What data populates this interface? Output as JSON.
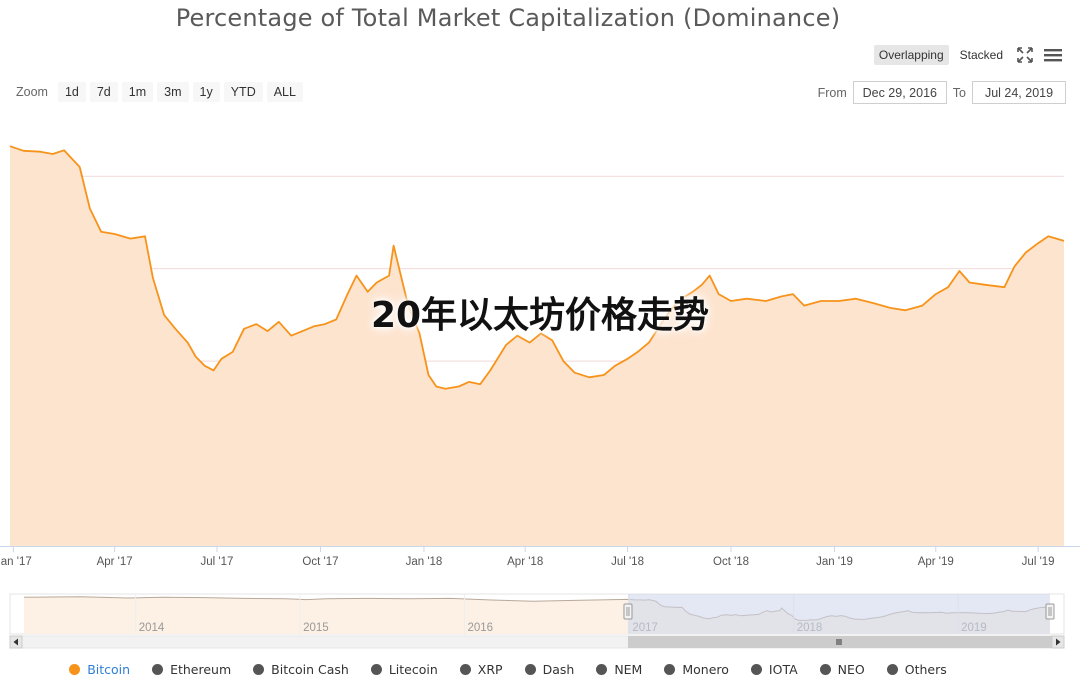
{
  "title": "Percentage of Total Market Capitalization (Dominance)",
  "toolbar": {
    "modes": [
      "Overlapping",
      "Stacked"
    ],
    "active_mode": "Overlapping",
    "fullscreen_icon": "fullscreen-icon",
    "menu_icon": "hamburger-menu-icon"
  },
  "zoom": {
    "label": "Zoom",
    "buttons": [
      "1d",
      "7d",
      "1m",
      "3m",
      "1y",
      "YTD",
      "ALL"
    ]
  },
  "range": {
    "from_label": "From",
    "from_value": "Dec 29, 2016",
    "to_label": "To",
    "to_value": "Jul 24, 2019"
  },
  "watermark": "20年以太坊价格走势",
  "colors": {
    "bitcoin": "#f7931a",
    "area_fill": "#fde4cf",
    "nav_fill": "#fdf1e6",
    "selection": "#ccd6eb",
    "grid": "#f2d9d9"
  },
  "chart_data": {
    "type": "area",
    "series_name": "Bitcoin",
    "x_ticks": [
      "Jan '17",
      "Apr '17",
      "Jul '17",
      "Oct '17",
      "Jan '18",
      "Apr '18",
      "Jul '18",
      "Oct '18",
      "Jan '19",
      "Apr '19",
      "Jul '19"
    ],
    "x_range": [
      "2016-12-29",
      "2019-07-24"
    ],
    "y_range": [
      0,
      90
    ],
    "grid": true,
    "points": [
      [
        "2016-12-29",
        86.5
      ],
      [
        "2017-01-10",
        85.5
      ],
      [
        "2017-01-25",
        85.3
      ],
      [
        "2017-02-05",
        84.8
      ],
      [
        "2017-02-15",
        85.6
      ],
      [
        "2017-03-01",
        82.0
      ],
      [
        "2017-03-10",
        73.0
      ],
      [
        "2017-03-20",
        68.0
      ],
      [
        "2017-04-01",
        67.5
      ],
      [
        "2017-04-15",
        66.5
      ],
      [
        "2017-04-28",
        67.0
      ],
      [
        "2017-05-05",
        58.0
      ],
      [
        "2017-05-15",
        50.0
      ],
      [
        "2017-05-25",
        47.0
      ],
      [
        "2017-06-05",
        44.0
      ],
      [
        "2017-06-12",
        41.0
      ],
      [
        "2017-06-20",
        39.0
      ],
      [
        "2017-06-28",
        38.0
      ],
      [
        "2017-07-05",
        40.5
      ],
      [
        "2017-07-15",
        42.0
      ],
      [
        "2017-07-25",
        47.0
      ],
      [
        "2017-08-05",
        48.0
      ],
      [
        "2017-08-15",
        46.5
      ],
      [
        "2017-08-25",
        48.5
      ],
      [
        "2017-09-05",
        45.5
      ],
      [
        "2017-09-15",
        46.5
      ],
      [
        "2017-09-25",
        47.5
      ],
      [
        "2017-10-05",
        48.0
      ],
      [
        "2017-10-15",
        49.0
      ],
      [
        "2017-10-25",
        54.5
      ],
      [
        "2017-11-02",
        58.5
      ],
      [
        "2017-11-12",
        55.0
      ],
      [
        "2017-11-20",
        57.0
      ],
      [
        "2017-12-01",
        58.5
      ],
      [
        "2017-12-05",
        65.0
      ],
      [
        "2017-12-10",
        60.0
      ],
      [
        "2017-12-18",
        52.0
      ],
      [
        "2017-12-28",
        46.0
      ],
      [
        "2018-01-05",
        37.0
      ],
      [
        "2018-01-12",
        34.5
      ],
      [
        "2018-01-20",
        34.0
      ],
      [
        "2018-02-01",
        34.5
      ],
      [
        "2018-02-10",
        35.5
      ],
      [
        "2018-02-20",
        35.0
      ],
      [
        "2018-03-01",
        38.0
      ],
      [
        "2018-03-15",
        43.5
      ],
      [
        "2018-03-25",
        45.5
      ],
      [
        "2018-04-05",
        44.0
      ],
      [
        "2018-04-15",
        46.0
      ],
      [
        "2018-04-25",
        44.5
      ],
      [
        "2018-05-05",
        40.0
      ],
      [
        "2018-05-15",
        37.5
      ],
      [
        "2018-05-28",
        36.5
      ],
      [
        "2018-06-10",
        37.0
      ],
      [
        "2018-06-20",
        39.0
      ],
      [
        "2018-07-01",
        40.5
      ],
      [
        "2018-07-10",
        42.0
      ],
      [
        "2018-07-20",
        44.0
      ],
      [
        "2018-07-28",
        47.0
      ],
      [
        "2018-08-08",
        51.0
      ],
      [
        "2018-08-18",
        53.5
      ],
      [
        "2018-08-28",
        55.0
      ],
      [
        "2018-09-05",
        56.5
      ],
      [
        "2018-09-12",
        58.5
      ],
      [
        "2018-09-20",
        54.5
      ],
      [
        "2018-10-01",
        53.0
      ],
      [
        "2018-10-15",
        53.5
      ],
      [
        "2018-11-01",
        53.0
      ],
      [
        "2018-11-15",
        54.0
      ],
      [
        "2018-11-25",
        54.5
      ],
      [
        "2018-12-05",
        52.0
      ],
      [
        "2018-12-20",
        53.0
      ],
      [
        "2019-01-05",
        53.0
      ],
      [
        "2019-01-20",
        53.5
      ],
      [
        "2019-02-05",
        52.5
      ],
      [
        "2019-02-20",
        51.5
      ],
      [
        "2019-03-05",
        51.0
      ],
      [
        "2019-03-20",
        52.0
      ],
      [
        "2019-04-01",
        54.5
      ],
      [
        "2019-04-12",
        56.0
      ],
      [
        "2019-04-22",
        59.5
      ],
      [
        "2019-05-01",
        57.0
      ],
      [
        "2019-05-15",
        56.5
      ],
      [
        "2019-06-01",
        56.0
      ],
      [
        "2019-06-10",
        60.5
      ],
      [
        "2019-06-20",
        63.5
      ],
      [
        "2019-07-01",
        65.5
      ],
      [
        "2019-07-10",
        67.0
      ],
      [
        "2019-07-24",
        66.0
      ]
    ]
  },
  "navigator": {
    "year_labels": [
      "2014",
      "2015",
      "2016",
      "2017",
      "2018",
      "2019"
    ],
    "x_range": [
      "2013-04-28",
      "2019-07-24"
    ],
    "selection_range": [
      "2016-12-29",
      "2019-07-24"
    ],
    "points": [
      [
        "2013-04-28",
        92
      ],
      [
        "2013-09-01",
        93
      ],
      [
        "2013-12-15",
        90
      ],
      [
        "2014-03-01",
        92
      ],
      [
        "2014-06-01",
        91
      ],
      [
        "2014-09-01",
        89
      ],
      [
        "2014-12-01",
        88
      ],
      [
        "2015-01-15",
        86
      ],
      [
        "2015-03-01",
        88
      ],
      [
        "2015-06-01",
        89
      ],
      [
        "2015-09-01",
        88
      ],
      [
        "2015-12-01",
        89
      ],
      [
        "2016-03-01",
        85
      ],
      [
        "2016-06-01",
        82
      ],
      [
        "2016-09-01",
        84
      ],
      [
        "2016-12-29",
        86.5
      ]
    ]
  },
  "legend": {
    "items": [
      "Bitcoin",
      "Ethereum",
      "Bitcoin Cash",
      "Litecoin",
      "XRP",
      "Dash",
      "NEM",
      "Monero",
      "IOTA",
      "NEO",
      "Others"
    ],
    "active": "Bitcoin",
    "active_color": "#f7931a",
    "inactive_color": "#555555"
  }
}
